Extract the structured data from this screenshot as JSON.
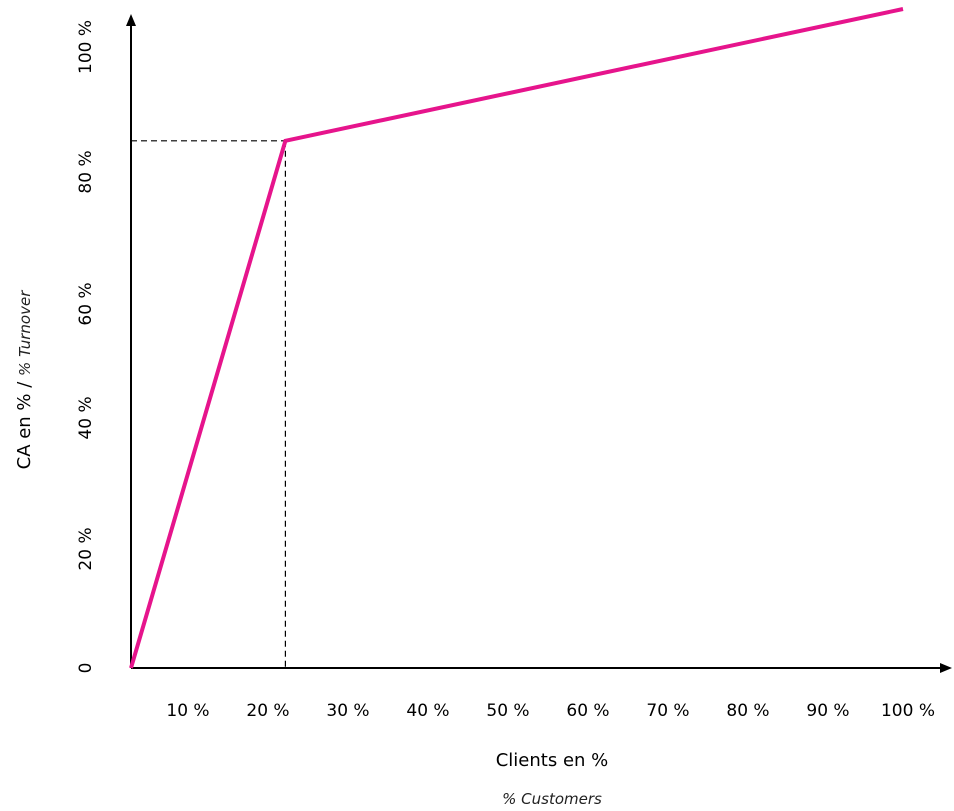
{
  "chart_data": {
    "type": "line",
    "xlabel": "Clients en %",
    "xlabel_sub": "% Customers",
    "ylabel": "CA en %",
    "ylabel_separator": " / ",
    "ylabel_sub": "% Turnover",
    "x_tick_labels": [
      "10 %",
      "20 %",
      "30 %",
      "40 %",
      "50 %",
      "60 %",
      "70 %",
      "80 %",
      "90 %",
      "100 %"
    ],
    "y_tick_labels": [
      "0",
      "20 %",
      "40 %",
      "60 %",
      "80 %",
      "100 %"
    ],
    "x": [
      0,
      20,
      100
    ],
    "y": [
      0,
      80,
      100
    ],
    "xlim": [
      0,
      100
    ],
    "ylim": [
      0,
      100
    ],
    "reference_point": {
      "x": 20,
      "y": 80
    },
    "grid": false,
    "colors": {
      "line": "#e6148c",
      "axis": "#000000",
      "reference": "#000000"
    }
  }
}
